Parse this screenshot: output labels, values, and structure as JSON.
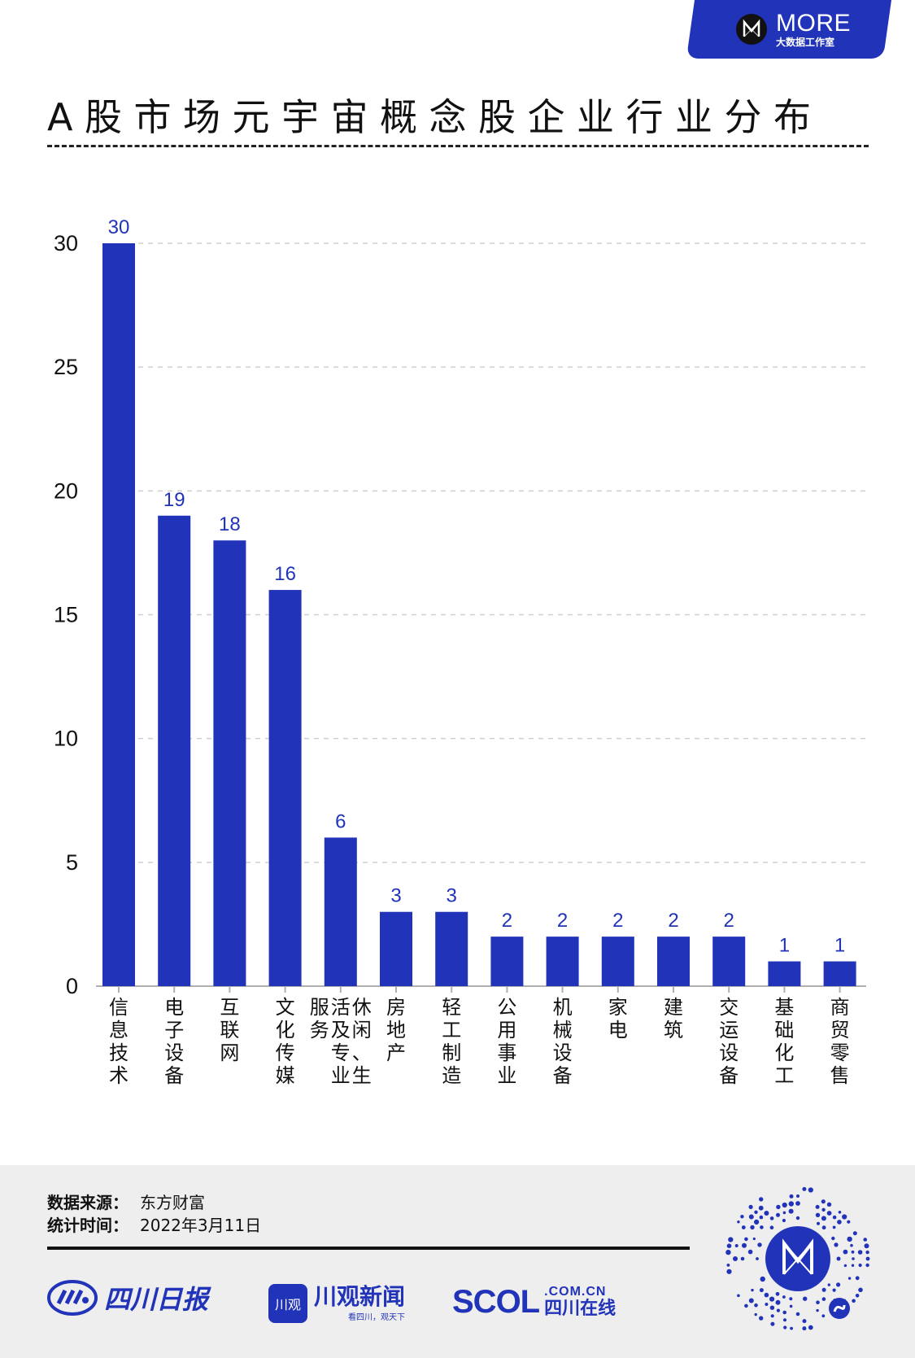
{
  "brand": {
    "badge_title": "MORE",
    "badge_subtitle": "大数据工作室",
    "color": "#2133b8"
  },
  "page": {
    "title": "A股市场元宇宙概念股企业行业分布"
  },
  "chart_data": {
    "type": "bar",
    "title": "A股市场元宇宙概念股企业行业分布",
    "xlabel": "",
    "ylabel": "",
    "categories": [
      "信息技术",
      "电子设备",
      "互联网",
      "文化传媒",
      "休闲、生活及专业服务",
      "房地产",
      "轻工制造",
      "公用事业",
      "机械设备",
      "家电",
      "建筑",
      "交运设备",
      "基础化工",
      "商贸零售"
    ],
    "values": [
      30,
      19,
      18,
      16,
      6,
      3,
      3,
      2,
      2,
      2,
      2,
      2,
      1,
      1
    ],
    "ylim": [
      0,
      30
    ],
    "yticks": [
      0,
      5,
      10,
      15,
      20,
      25,
      30
    ],
    "bar_color": "#2133b8",
    "label_color": "#2133b8",
    "grid": true,
    "data_labels": true
  },
  "footer": {
    "source_label": "数据来源：",
    "source_value": "东方财富",
    "date_label": "统计时间：",
    "date_value": "2022年3月11日"
  },
  "logos": {
    "sichuan_daily": "四川日报",
    "chuanguan_box": "川观",
    "chuanguan_name": "川观新闻",
    "chuanguan_slogan": "看四川，观天下",
    "scol_main": "SCOL",
    "scol_domain": ".COM.CN",
    "scol_cn": "四川在线"
  }
}
